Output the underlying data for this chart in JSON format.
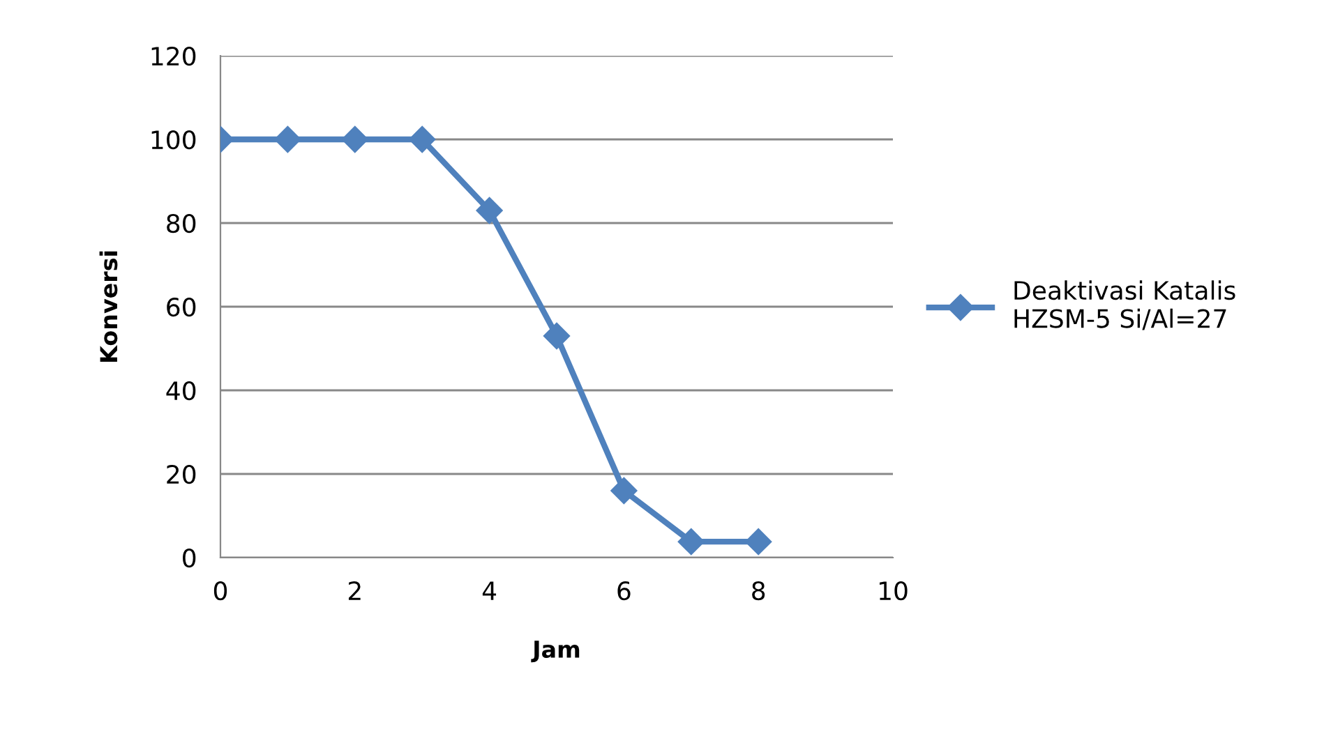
{
  "chart_data": {
    "type": "line",
    "xlabel": "Jam",
    "ylabel": "Konversi",
    "x": [
      0,
      1,
      2,
      3,
      4,
      5,
      6,
      7,
      8
    ],
    "series": [
      {
        "name": "Deaktivasi Katalis\nHZSM-5 Si/Al=27",
        "color": "#4f81bd",
        "values": [
          100,
          100,
          100,
          100,
          83,
          53,
          16,
          3.8,
          3.8
        ]
      }
    ],
    "xlim": [
      0,
      10
    ],
    "xticks": [
      0,
      2,
      4,
      6,
      8,
      10
    ],
    "ylim": [
      0,
      120
    ],
    "yticks": [
      0,
      20,
      40,
      60,
      80,
      100,
      120
    ],
    "grid": "y",
    "legend": "right",
    "marker": "diamond",
    "line_style": "solid"
  }
}
